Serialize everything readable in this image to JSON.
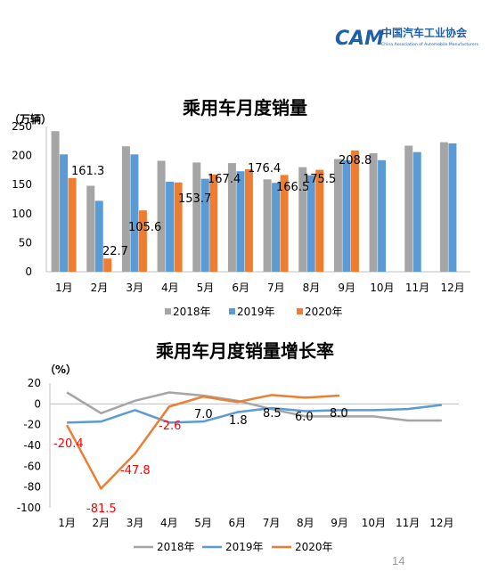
{
  "header": {
    "logo_mark": "CAM",
    "org_name_cn": "中国汽车工业协会",
    "org_name_en": "China Association of Automobile Manufacturers"
  },
  "page_number": "14",
  "colors": {
    "s2018": "#a5a5a5",
    "s2019": "#5b9bd5",
    "s2020": "#ed7d31",
    "label_red": "#ff0000",
    "logo_blue": "#1f5fa8"
  },
  "chart_data": [
    {
      "type": "bar",
      "title": "乘用车月度销量",
      "unit_label": "（万辆）",
      "categories": [
        "1月",
        "2月",
        "3月",
        "4月",
        "5月",
        "6月",
        "7月",
        "8月",
        "9月",
        "10月",
        "11月",
        "12月"
      ],
      "ylim": [
        0,
        250
      ],
      "yticks": [
        "0",
        "50",
        "100",
        "150",
        "200",
        "250"
      ],
      "series": [
        {
          "name": "2018年",
          "values": [
            242,
            148,
            216,
            191,
            188,
            187,
            159,
            180,
            194,
            204,
            217,
            223
          ]
        },
        {
          "name": "2019年",
          "values": [
            202,
            122,
            202,
            155,
            160,
            173,
            153,
            166,
            192,
            192,
            206,
            221
          ]
        },
        {
          "name": "2020年",
          "values": [
            161.3,
            22.7,
            105.6,
            153.7,
            167.4,
            176.4,
            166.5,
            175.5,
            208.8,
            null,
            null,
            null
          ]
        }
      ],
      "data_labels": [
        "161.3",
        "22.7",
        "105.6",
        "153.7",
        "167.4",
        "176.4",
        "166.5",
        "175.5",
        "208.8"
      ],
      "legend": "bottom"
    },
    {
      "type": "line",
      "title": "乘用车月度销量增长率",
      "unit_label": "（%）",
      "categories": [
        "1月",
        "2月",
        "3月",
        "4月",
        "5月",
        "6月",
        "7月",
        "8月",
        "9月",
        "10月",
        "11月",
        "12月"
      ],
      "ylim": [
        -100,
        20
      ],
      "yticks": [
        "20",
        "0",
        "-20",
        "-40",
        "-60",
        "-80",
        "-100"
      ],
      "series": [
        {
          "name": "2018年",
          "values": [
            11,
            -9,
            3,
            11,
            8,
            3,
            -5,
            -12,
            -12,
            -12,
            -16,
            -16
          ]
        },
        {
          "name": "2019年",
          "values": [
            -18,
            -17,
            -6,
            -18,
            -17,
            -8,
            -4,
            -7,
            -6,
            -6,
            -5,
            -1
          ]
        },
        {
          "name": "2020年",
          "values": [
            -20.4,
            -81.5,
            -47.8,
            -2.6,
            7.0,
            1.8,
            8.5,
            6.0,
            8.0,
            null,
            null,
            null
          ]
        }
      ],
      "data_labels": [
        "-20.4",
        "-81.5",
        "-47.8",
        "-2.6",
        "7.0",
        "1.8",
        "8.5",
        "6.0",
        "8.0"
      ],
      "legend": "bottom"
    }
  ]
}
